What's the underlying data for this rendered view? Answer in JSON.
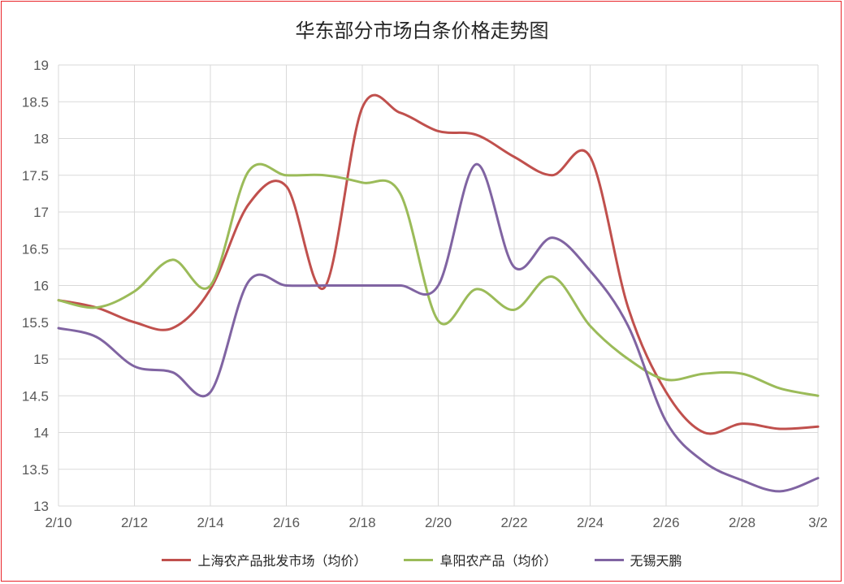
{
  "chart_data": {
    "type": "line",
    "title": "华东部分市场白条价格走势图",
    "xlabel": "",
    "ylabel": "",
    "ylim": [
      13,
      19
    ],
    "y_ticks": [
      "13",
      "13.5",
      "14",
      "14.5",
      "15",
      "15.5",
      "16",
      "16.5",
      "17",
      "17.5",
      "18",
      "18.5",
      "19"
    ],
    "x_tick_labels": [
      "2/10",
      "2/12",
      "2/14",
      "2/16",
      "2/18",
      "2/20",
      "2/22",
      "2/24",
      "2/26",
      "2/28",
      "3/2"
    ],
    "x": [
      "2/10",
      "2/11",
      "2/12",
      "2/13",
      "2/14",
      "2/15",
      "2/16",
      "2/17",
      "2/18",
      "2/19",
      "2/20",
      "2/21",
      "2/22",
      "2/23",
      "2/24",
      "2/25",
      "2/26",
      "2/27",
      "2/28",
      "3/1",
      "3/2"
    ],
    "grid": true,
    "legend_position": "bottom",
    "series": [
      {
        "name": "上海农产品批发市场（均价）",
        "color": "#c0504d",
        "values": [
          15.8,
          15.7,
          15.5,
          15.42,
          15.95,
          17.1,
          17.35,
          15.97,
          18.42,
          18.35,
          18.1,
          18.05,
          17.75,
          17.5,
          17.75,
          15.7,
          14.55,
          14.0,
          14.12,
          14.05,
          14.08
        ]
      },
      {
        "name": "阜阳农产品（均价）",
        "color": "#9bbb59",
        "values": [
          15.8,
          15.7,
          15.92,
          16.35,
          16.0,
          17.55,
          17.5,
          17.5,
          17.4,
          17.25,
          15.52,
          15.95,
          15.67,
          16.12,
          15.45,
          15.0,
          14.72,
          14.8,
          14.8,
          14.6,
          14.5
        ]
      },
      {
        "name": "无锡天鹏",
        "color": "#8064a2",
        "values": [
          15.42,
          15.3,
          14.9,
          14.82,
          14.55,
          16.05,
          16.0,
          16.0,
          16.0,
          16.0,
          16.0,
          17.65,
          16.25,
          16.65,
          16.2,
          15.45,
          14.15,
          13.6,
          13.35,
          13.2,
          13.38
        ]
      }
    ]
  }
}
